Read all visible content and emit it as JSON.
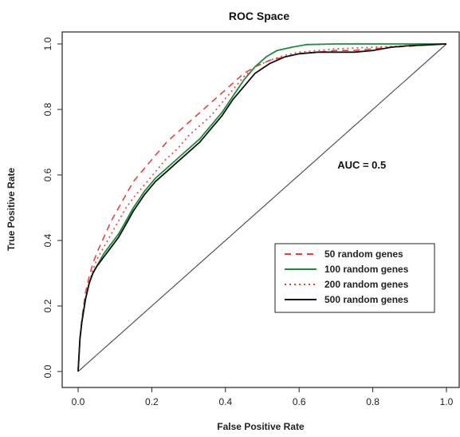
{
  "chart_data": {
    "type": "line",
    "title": "ROC Space",
    "xlabel": "False Positive Rate",
    "ylabel": "True Positive Rate",
    "xlim": [
      0,
      1
    ],
    "ylim": [
      0,
      1
    ],
    "x_ticks": [
      0.0,
      0.2,
      0.4,
      0.6,
      0.8,
      1.0
    ],
    "y_ticks": [
      0.0,
      0.2,
      0.4,
      0.6,
      0.8,
      1.0
    ],
    "x_tick_labels": [
      "0.0",
      "0.2",
      "0.4",
      "0.6",
      "0.8",
      "1.0"
    ],
    "y_tick_labels": [
      "0.0",
      "0.2",
      "0.4",
      "0.6",
      "0.8",
      "1.0"
    ],
    "grid": false,
    "legend_position": "bottom-right",
    "annotation": {
      "text": "AUC = 0.5",
      "x": 0.77,
      "y": 0.62
    },
    "diagonal": {
      "x": [
        0,
        1
      ],
      "y": [
        0,
        1
      ],
      "color": "#555555"
    },
    "series": [
      {
        "name": "50 random genes",
        "color": "#e8413c",
        "dash": "8,6",
        "x": [
          0,
          0.005,
          0.01,
          0.02,
          0.03,
          0.04,
          0.05,
          0.07,
          0.09,
          0.11,
          0.13,
          0.15,
          0.18,
          0.21,
          0.24,
          0.27,
          0.3,
          0.33,
          0.36,
          0.39,
          0.42,
          0.45,
          0.48,
          0.52,
          0.56,
          0.6,
          0.65,
          0.7,
          0.75,
          0.8,
          0.85,
          0.9,
          0.95,
          1.0
        ],
        "y": [
          0,
          0.1,
          0.16,
          0.24,
          0.29,
          0.33,
          0.36,
          0.41,
          0.46,
          0.5,
          0.54,
          0.58,
          0.62,
          0.66,
          0.7,
          0.73,
          0.76,
          0.79,
          0.82,
          0.85,
          0.88,
          0.91,
          0.93,
          0.95,
          0.96,
          0.97,
          0.975,
          0.98,
          0.98,
          0.985,
          0.99,
          0.993,
          0.997,
          1.0
        ]
      },
      {
        "name": "100 random genes",
        "color": "#1e8a3c",
        "dash": "",
        "x": [
          0,
          0.005,
          0.01,
          0.02,
          0.03,
          0.04,
          0.05,
          0.07,
          0.09,
          0.11,
          0.13,
          0.15,
          0.18,
          0.21,
          0.24,
          0.27,
          0.3,
          0.33,
          0.36,
          0.39,
          0.42,
          0.45,
          0.48,
          0.51,
          0.54,
          0.58,
          0.62,
          0.7,
          0.8,
          0.9,
          1.0
        ],
        "y": [
          0,
          0.1,
          0.15,
          0.22,
          0.27,
          0.3,
          0.32,
          0.36,
          0.39,
          0.42,
          0.46,
          0.5,
          0.55,
          0.59,
          0.62,
          0.65,
          0.68,
          0.71,
          0.75,
          0.79,
          0.84,
          0.89,
          0.93,
          0.96,
          0.98,
          0.99,
          0.998,
          1.0,
          1.0,
          1.0,
          1.0
        ]
      },
      {
        "name": "200 random genes",
        "color": "#e8413c",
        "dash": "2,4",
        "x": [
          0,
          0.005,
          0.01,
          0.02,
          0.03,
          0.04,
          0.05,
          0.07,
          0.09,
          0.11,
          0.13,
          0.15,
          0.18,
          0.21,
          0.24,
          0.27,
          0.3,
          0.33,
          0.36,
          0.39,
          0.42,
          0.45,
          0.48,
          0.52,
          0.56,
          0.6,
          0.65,
          0.7,
          0.8,
          0.9,
          1.0
        ],
        "y": [
          0,
          0.1,
          0.15,
          0.22,
          0.27,
          0.31,
          0.34,
          0.38,
          0.42,
          0.46,
          0.5,
          0.53,
          0.57,
          0.61,
          0.65,
          0.68,
          0.72,
          0.75,
          0.78,
          0.82,
          0.86,
          0.9,
          0.93,
          0.95,
          0.965,
          0.975,
          0.98,
          0.985,
          0.99,
          0.995,
          1.0
        ]
      },
      {
        "name": "500 random genes",
        "color": "#111111",
        "dash": "",
        "x": [
          0,
          0.005,
          0.01,
          0.02,
          0.03,
          0.04,
          0.05,
          0.07,
          0.09,
          0.11,
          0.13,
          0.15,
          0.18,
          0.21,
          0.24,
          0.27,
          0.3,
          0.33,
          0.36,
          0.39,
          0.42,
          0.45,
          0.48,
          0.52,
          0.56,
          0.6,
          0.65,
          0.7,
          0.75,
          0.8,
          0.85,
          0.9,
          0.95,
          1.0
        ],
        "y": [
          0,
          0.1,
          0.15,
          0.22,
          0.27,
          0.3,
          0.32,
          0.35,
          0.38,
          0.41,
          0.45,
          0.49,
          0.54,
          0.58,
          0.61,
          0.64,
          0.67,
          0.7,
          0.74,
          0.78,
          0.83,
          0.87,
          0.91,
          0.94,
          0.96,
          0.97,
          0.975,
          0.975,
          0.975,
          0.98,
          0.99,
          0.995,
          0.997,
          1.0
        ]
      }
    ]
  }
}
